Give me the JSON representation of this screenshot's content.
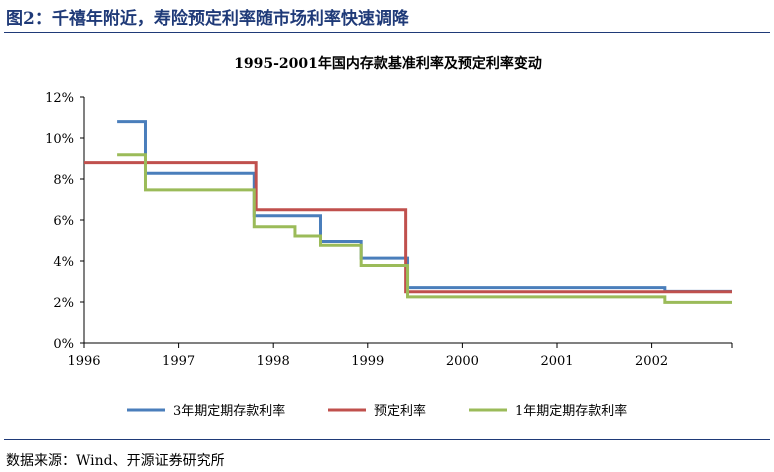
{
  "figure": {
    "title": "图2：千禧年附近，寿险预定利率随市场利率快速调降",
    "source": "数据来源：Wind、开源证券研究所"
  },
  "chart_data": {
    "type": "line",
    "title": "1995-2001年国内存款基准利率及预定利率变动",
    "xlabel": "",
    "ylabel": "",
    "xlim": [
      1996,
      2002.85
    ],
    "ylim": [
      0,
      12
    ],
    "x_ticks": [
      "1996",
      "1997",
      "1998",
      "1999",
      "2000",
      "2001",
      "2002"
    ],
    "y_ticks": [
      "0%",
      "2%",
      "4%",
      "6%",
      "8%",
      "10%",
      "12%"
    ],
    "grid": false,
    "legend_position": "bottom",
    "series": [
      {
        "name": "3年期定期存款利率",
        "color": "#4a7ebb",
        "step": true,
        "points": [
          [
            1996.35,
            10.8
          ],
          [
            1996.65,
            8.28
          ],
          [
            1997.8,
            6.21
          ],
          [
            1998.5,
            4.95
          ],
          [
            1998.93,
            4.14
          ],
          [
            1999.42,
            2.7
          ],
          [
            2002.14,
            2.52
          ],
          [
            2002.85,
            2.52
          ]
        ]
      },
      {
        "name": "预定利率",
        "color": "#c0504d",
        "step": true,
        "points": [
          [
            1996.0,
            8.8
          ],
          [
            1997.82,
            6.5
          ],
          [
            1999.4,
            2.5
          ],
          [
            2002.85,
            2.5
          ]
        ]
      },
      {
        "name": "1年期定期存款利率",
        "color": "#9bbb59",
        "step": true,
        "points": [
          [
            1996.35,
            9.18
          ],
          [
            1996.65,
            7.47
          ],
          [
            1997.8,
            5.67
          ],
          [
            1998.23,
            5.22
          ],
          [
            1998.5,
            4.77
          ],
          [
            1998.93,
            3.78
          ],
          [
            1999.42,
            2.25
          ],
          [
            2002.14,
            1.98
          ],
          [
            2002.85,
            1.98
          ]
        ]
      }
    ]
  }
}
